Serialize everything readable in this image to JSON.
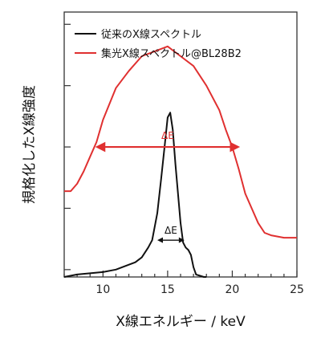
{
  "chart_data": {
    "type": "line",
    "xlabel": "X線エネルギー / keV",
    "ylabel": "規格化したX線強度",
    "xlim": [
      7,
      25
    ],
    "ylim": [
      0,
      1.08
    ],
    "xticks": [
      10,
      15,
      20,
      25
    ],
    "yticks_unlabeled": [
      0.03,
      0.28,
      0.53,
      0.78,
      1.03
    ],
    "grid": false,
    "legend_position": "top-left",
    "series": [
      {
        "name": "従来のX線スペクトル",
        "color": "#111111",
        "x": [
          7.0,
          8.0,
          9.0,
          10.0,
          11.0,
          12.0,
          12.5,
          13.0,
          13.5,
          13.8,
          14.2,
          14.5,
          14.8,
          15.0,
          15.2,
          15.4,
          15.6,
          15.8,
          16.0,
          16.2,
          16.4,
          16.6,
          16.8,
          17.0,
          17.2,
          17.5,
          17.8,
          18.0
        ],
        "y": [
          0.0,
          0.01,
          0.015,
          0.02,
          0.03,
          0.05,
          0.06,
          0.08,
          0.12,
          0.15,
          0.26,
          0.4,
          0.55,
          0.65,
          0.67,
          0.6,
          0.46,
          0.34,
          0.22,
          0.14,
          0.12,
          0.11,
          0.09,
          0.04,
          0.01,
          0.005,
          0.0,
          0.0
        ]
      },
      {
        "name": "集光X線スペクトル@BL28B2",
        "color": "#e03030",
        "x": [
          7.0,
          7.5,
          8.0,
          8.5,
          9.0,
          9.5,
          10.0,
          11.0,
          12.0,
          13.0,
          14.0,
          15.0,
          16.0,
          17.0,
          18.0,
          19.0,
          19.5,
          20.0,
          20.5,
          21.0,
          21.5,
          22.0,
          22.5,
          23.0,
          24.0,
          25.0
        ],
        "y": [
          0.35,
          0.35,
          0.38,
          0.43,
          0.49,
          0.55,
          0.64,
          0.77,
          0.84,
          0.9,
          0.92,
          0.94,
          0.9,
          0.86,
          0.78,
          0.68,
          0.6,
          0.53,
          0.44,
          0.34,
          0.28,
          0.22,
          0.18,
          0.17,
          0.16,
          0.16
        ]
      }
    ],
    "annotations": [
      {
        "text": "ΔE",
        "color": "#e03030",
        "x_from": 9.4,
        "x_to": 20.6,
        "y": 0.53
      },
      {
        "text": "ΔE",
        "color": "#111111",
        "x_from": 14.2,
        "x_to": 16.3,
        "y": 0.15
      }
    ]
  }
}
